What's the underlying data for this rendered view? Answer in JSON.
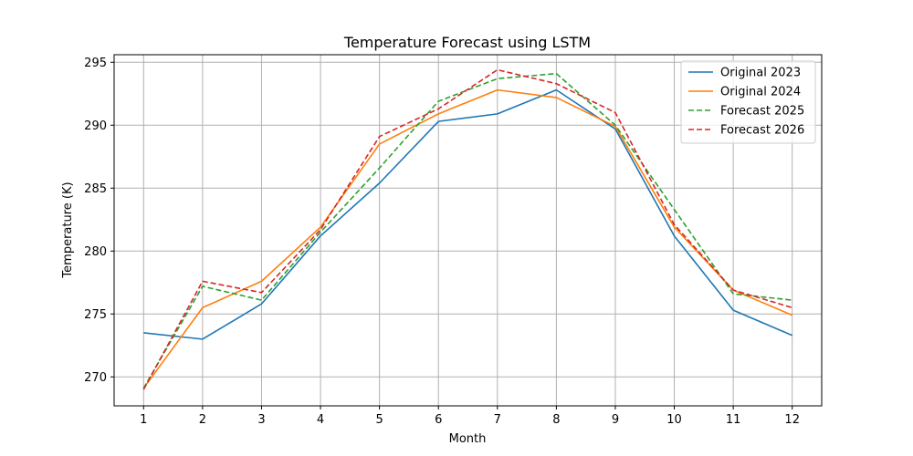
{
  "chart_data": {
    "type": "line",
    "title": "Temperature Forecast using LSTM",
    "xlabel": "Month",
    "ylabel": "Temperature (K)",
    "x": [
      1,
      2,
      3,
      4,
      5,
      6,
      7,
      8,
      9,
      10,
      11,
      12
    ],
    "xlim": [
      0.5,
      12.5
    ],
    "ylim": [
      267.7,
      295.6
    ],
    "yticks": [
      270,
      275,
      280,
      285,
      290,
      295
    ],
    "grid": true,
    "legend_position": "top-right",
    "series": [
      {
        "name": "Original 2023",
        "color": "#1f77b4",
        "style": "solid",
        "values": [
          273.5,
          273.0,
          275.8,
          281.2,
          285.4,
          290.3,
          290.9,
          292.8,
          289.7,
          281.2,
          275.3,
          273.3
        ]
      },
      {
        "name": "Original 2024",
        "color": "#ff7f0e",
        "style": "solid",
        "values": [
          269.1,
          275.5,
          277.6,
          281.9,
          288.5,
          290.9,
          292.8,
          292.2,
          289.9,
          281.9,
          276.9,
          274.9
        ]
      },
      {
        "name": "Forecast 2025",
        "color": "#2ca02c",
        "style": "dashed",
        "values": [
          269.1,
          277.2,
          276.1,
          281.5,
          286.6,
          291.9,
          293.7,
          294.1,
          290.0,
          283.3,
          276.6,
          276.1
        ]
      },
      {
        "name": "Forecast 2026",
        "color": "#d62728",
        "style": "dashed",
        "values": [
          269.0,
          277.6,
          276.7,
          281.7,
          289.1,
          291.3,
          294.4,
          293.3,
          291.0,
          282.1,
          276.9,
          275.5
        ]
      }
    ]
  }
}
